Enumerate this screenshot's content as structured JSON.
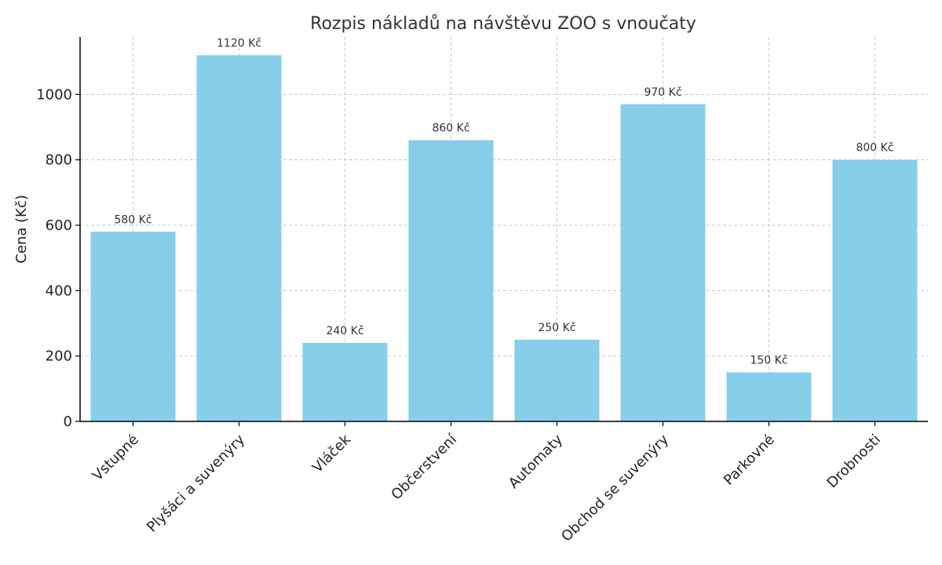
{
  "chart_data": {
    "type": "bar",
    "title": "Rozpis nákladů na návštěvu ZOO s vnoučaty",
    "xlabel": "",
    "ylabel": "Cena (Kč)",
    "categories": [
      "Vstupné",
      "Plyšáci a suvenýry",
      "Vláček",
      "Občerstvení",
      "Automaty",
      "Obchod se suvenýry",
      "Parkovné",
      "Drobnosti"
    ],
    "values": [
      580,
      1120,
      240,
      860,
      250,
      970,
      150,
      800
    ],
    "data_labels": [
      "580 Kč",
      "1120 Kč",
      "240 Kč",
      "860 Kč",
      "250 Kč",
      "970 Kč",
      "150 Kč",
      "800 Kč"
    ],
    "ylim": [
      0,
      1176
    ],
    "yticks": [
      0,
      200,
      400,
      600,
      800,
      1000
    ],
    "grid": true,
    "bar_color": "#87ceeb"
  }
}
